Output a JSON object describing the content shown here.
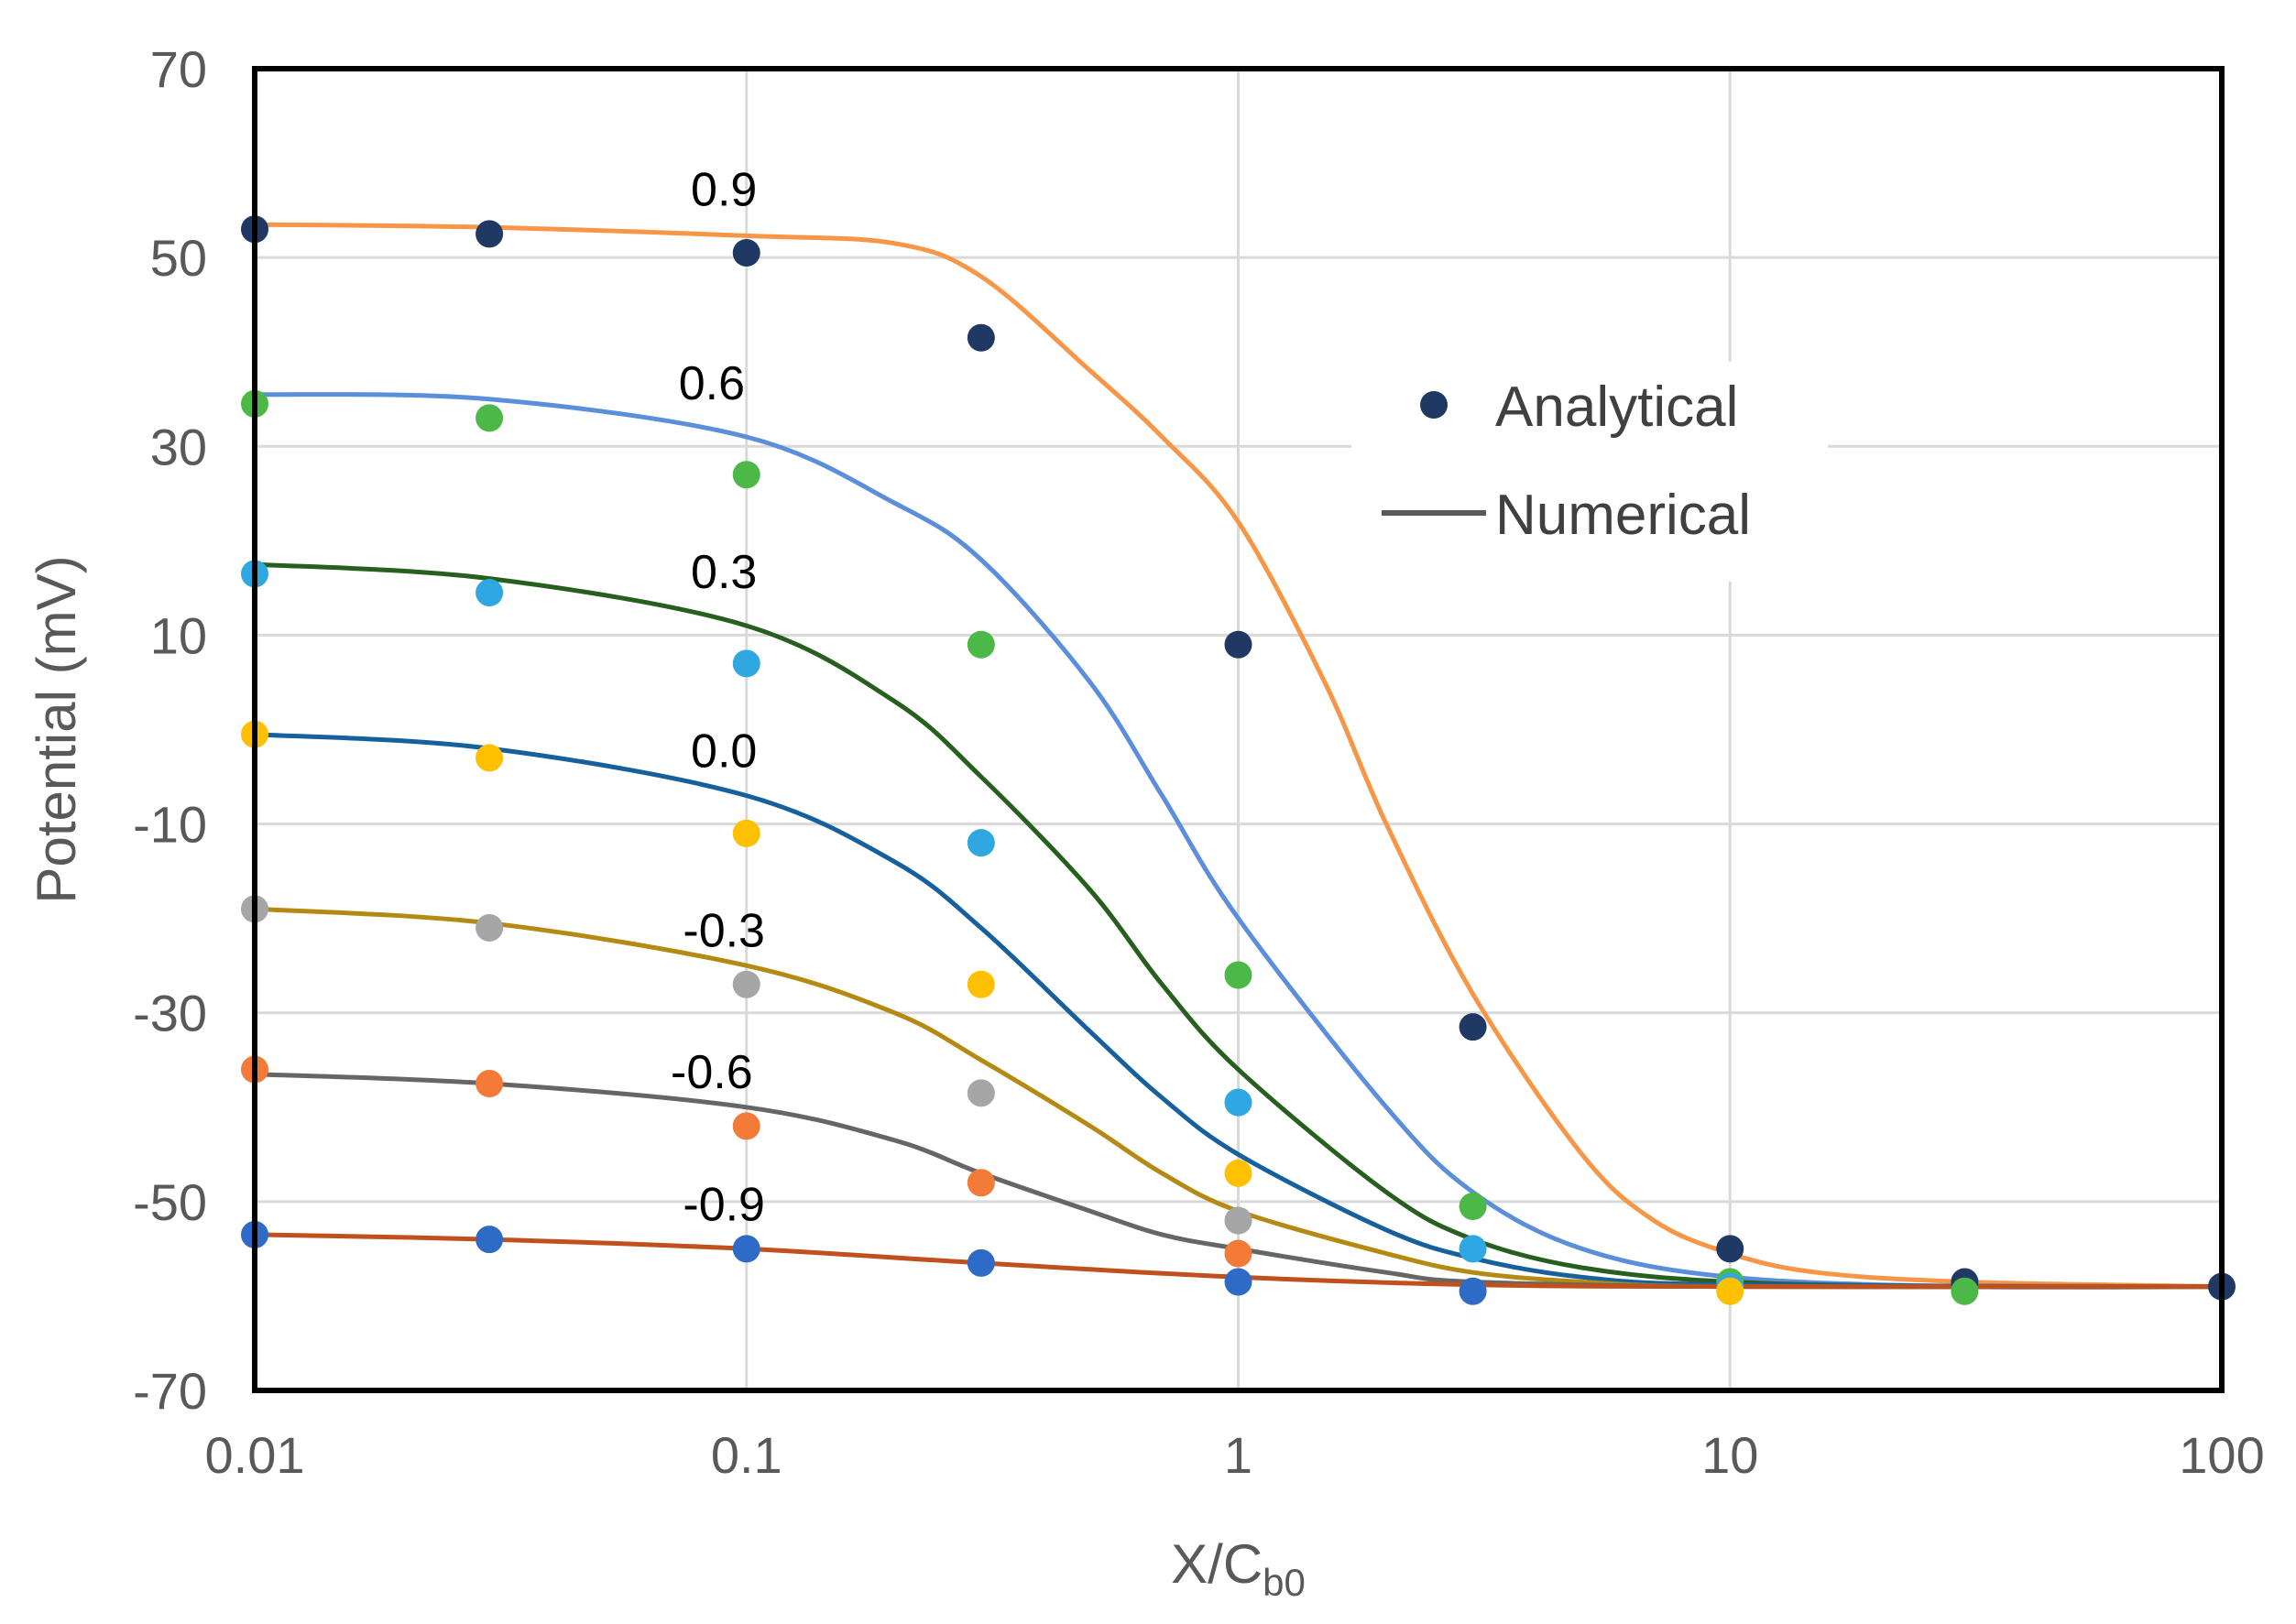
{
  "chart_data": {
    "type": "line",
    "title": "",
    "xlabel": "X/C",
    "xlabel_subscript": "b0",
    "ylabel": "Potential (mV)",
    "xscale": "log",
    "xlim": [
      0.01,
      100
    ],
    "ylim": [
      -70,
      70
    ],
    "x_ticks": [
      0.01,
      0.1,
      1,
      10,
      100
    ],
    "x_tick_labels": [
      "0.01",
      "0.1",
      "1",
      "10",
      "100"
    ],
    "y_ticks": [
      70,
      50,
      30,
      10,
      -10,
      -30,
      -50,
      -70
    ],
    "y_tick_labels": [
      "70",
      "50",
      "30",
      "10",
      "-10",
      "-30",
      "-50",
      "-70"
    ],
    "grid": true,
    "legend": {
      "position": "top-right",
      "entries": [
        {
          "label": "Analytical",
          "marker": "dot",
          "color": "#203864"
        },
        {
          "label": "Numerical",
          "marker": "line",
          "color": "#595959"
        }
      ]
    },
    "series": [
      {
        "name": "0.9",
        "label_x": 0.09,
        "label_y": 55.5,
        "line_color": "#F79646",
        "point_color": "#1F3864",
        "numerical": [
          [
            0.01,
            53.5
          ],
          [
            0.03,
            53.2
          ],
          [
            0.1,
            52.3
          ],
          [
            0.2,
            51.5
          ],
          [
            0.3,
            48
          ],
          [
            0.5,
            38
          ],
          [
            0.7,
            31
          ],
          [
            1,
            22
          ],
          [
            1.5,
            5
          ],
          [
            2,
            -10
          ],
          [
            3,
            -28
          ],
          [
            5,
            -45
          ],
          [
            7,
            -52
          ],
          [
            10,
            -55.5
          ],
          [
            15,
            -57.5
          ],
          [
            30,
            -58.5
          ],
          [
            100,
            -59
          ]
        ],
        "analytical_x": [
          0.01,
          0.03,
          0.1,
          0.3,
          1,
          3,
          10,
          30,
          100
        ],
        "analytical_y": [
          53,
          52.5,
          50.5,
          41.5,
          9,
          -31.5,
          -55,
          -58.5,
          -59
        ]
      },
      {
        "name": "0.6",
        "label_x": 0.085,
        "label_y": 35,
        "line_color": "#5B8EDB",
        "point_color": "#4CB848",
        "numerical": [
          [
            0.01,
            35.5
          ],
          [
            0.03,
            35
          ],
          [
            0.1,
            31
          ],
          [
            0.2,
            24
          ],
          [
            0.3,
            18
          ],
          [
            0.5,
            5
          ],
          [
            0.7,
            -7
          ],
          [
            1,
            -20
          ],
          [
            2,
            -40
          ],
          [
            3,
            -49
          ],
          [
            5,
            -55
          ],
          [
            10,
            -58
          ],
          [
            30,
            -59
          ],
          [
            100,
            -59
          ]
        ],
        "analytical_x": [
          0.01,
          0.03,
          0.1,
          0.3,
          1,
          3,
          10,
          30
        ],
        "analytical_y": [
          34.5,
          33,
          27,
          9,
          -26,
          -50.5,
          -58.5,
          -59.5
        ]
      },
      {
        "name": "0.3",
        "label_x": 0.09,
        "label_y": 15,
        "line_color": "#275F1F",
        "point_color": "#2FA7E0",
        "numerical": [
          [
            0.01,
            17.5
          ],
          [
            0.03,
            16
          ],
          [
            0.1,
            11
          ],
          [
            0.2,
            3
          ],
          [
            0.3,
            -5
          ],
          [
            0.5,
            -17
          ],
          [
            0.7,
            -27
          ],
          [
            1,
            -36
          ],
          [
            2,
            -49
          ],
          [
            3,
            -54
          ],
          [
            5,
            -57
          ],
          [
            10,
            -58.5
          ],
          [
            30,
            -59
          ],
          [
            100,
            -59
          ]
        ],
        "analytical_x": [
          0.01,
          0.03,
          0.1,
          0.3,
          1,
          3,
          10
        ],
        "analytical_y": [
          16.5,
          14.5,
          7,
          -12,
          -39.5,
          -55,
          -59
        ]
      },
      {
        "name": "0.0",
        "label_x": 0.09,
        "label_y": -4,
        "line_color": "#17609E",
        "point_color": "#FFC000",
        "numerical": [
          [
            0.01,
            -0.5
          ],
          [
            0.03,
            -2
          ],
          [
            0.1,
            -7
          ],
          [
            0.2,
            -14
          ],
          [
            0.3,
            -21
          ],
          [
            0.5,
            -32
          ],
          [
            0.7,
            -39
          ],
          [
            1,
            -45
          ],
          [
            2,
            -53
          ],
          [
            3,
            -56
          ],
          [
            5,
            -58
          ],
          [
            10,
            -58.8
          ],
          [
            100,
            -59
          ]
        ],
        "analytical_x": [
          0.01,
          0.03,
          0.1,
          0.3,
          1,
          10
        ],
        "analytical_y": [
          -0.5,
          -3,
          -11,
          -27,
          -47,
          -59.5
        ]
      },
      {
        "name": "-0.3",
        "label_x": 0.09,
        "label_y": -23,
        "line_color": "#B58A13",
        "point_color": "#A6A6A6",
        "numerical": [
          [
            0.01,
            -19
          ],
          [
            0.03,
            -20.5
          ],
          [
            0.1,
            -25
          ],
          [
            0.2,
            -30
          ],
          [
            0.3,
            -35
          ],
          [
            0.5,
            -42
          ],
          [
            0.7,
            -47
          ],
          [
            1,
            -51
          ],
          [
            2,
            -55.5
          ],
          [
            3,
            -57.5
          ],
          [
            5,
            -58.5
          ],
          [
            10,
            -59
          ],
          [
            100,
            -59
          ]
        ],
        "analytical_x": [
          0.01,
          0.03,
          0.1,
          0.3,
          1
        ],
        "analytical_y": [
          -19,
          -21,
          -27,
          -38.5,
          -52
        ]
      },
      {
        "name": "-0.6",
        "label_x": 0.085,
        "label_y": -38,
        "line_color": "#666666",
        "point_color": "#F47B37",
        "numerical": [
          [
            0.01,
            -36.5
          ],
          [
            0.03,
            -37.5
          ],
          [
            0.1,
            -40
          ],
          [
            0.2,
            -43.5
          ],
          [
            0.3,
            -47
          ],
          [
            0.5,
            -51
          ],
          [
            0.7,
            -53.5
          ],
          [
            1,
            -55
          ],
          [
            2,
            -57.5
          ],
          [
            3,
            -58.5
          ],
          [
            10,
            -59
          ],
          [
            100,
            -59
          ]
        ],
        "analytical_x": [
          0.01,
          0.03,
          0.1,
          0.3,
          1
        ],
        "analytical_y": [
          -36,
          -37.5,
          -42,
          -48,
          -55.5
        ]
      },
      {
        "name": "-0.9",
        "label_x": 0.09,
        "label_y": -52,
        "line_color": "#C0501D",
        "point_color": "#2E6BC6",
        "numerical": [
          [
            0.01,
            -53.5
          ],
          [
            0.03,
            -54
          ],
          [
            0.1,
            -55
          ],
          [
            0.3,
            -56.5
          ],
          [
            1,
            -58
          ],
          [
            3,
            -58.8
          ],
          [
            10,
            -59
          ],
          [
            100,
            -59
          ]
        ],
        "analytical_x": [
          0.01,
          0.03,
          0.1,
          0.3,
          1,
          3
        ],
        "analytical_y": [
          -53.5,
          -54,
          -55,
          -56.5,
          -58.5,
          -59.5
        ]
      }
    ]
  }
}
